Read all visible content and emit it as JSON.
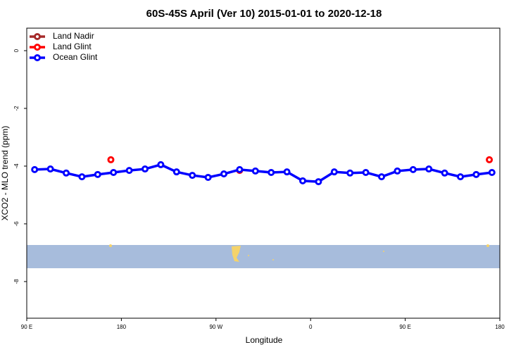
{
  "chart_data": {
    "type": "line",
    "title": "60S-45S April (Ver 10)   2015-01-01 to 2020-12-18",
    "x_label": "Longitude",
    "y_label": "XCO2 - MLO trend (ppm)",
    "xlim": [
      90,
      540
    ],
    "ylim": [
      -9.27,
      0.78
    ],
    "xticks": [
      {
        "value": 90,
        "label": "90 E"
      },
      {
        "value": 180,
        "label": "180"
      },
      {
        "value": 270,
        "label": "90 W"
      },
      {
        "value": 360,
        "label": "0"
      },
      {
        "value": 450,
        "label": "90 E"
      },
      {
        "value": 540,
        "label": "180"
      }
    ],
    "yticks": [
      0,
      -2,
      -4,
      -6,
      -8
    ],
    "legend": "top-left",
    "series": [
      {
        "name": "Land Nadir",
        "color": "#a52a2a",
        "mode": "lines+markers",
        "x": [],
        "values": []
      },
      {
        "name": "Land Glint",
        "color": "#ff0000",
        "mode": "markers",
        "x": [
          170,
          292.5,
          530
        ],
        "values": [
          -3.78,
          -4.15,
          -3.78
        ]
      },
      {
        "name": "Ocean Glint",
        "color": "#0000ff",
        "mode": "lines+markers",
        "x": [
          97.5,
          112.5,
          127.5,
          142.5,
          157.5,
          172.5,
          187.5,
          202.5,
          217.5,
          232.5,
          247.5,
          262.5,
          277.5,
          292.5,
          307.5,
          322.5,
          337.5,
          352.5,
          367.5,
          382.5,
          397.5,
          412.5,
          427.5,
          442.5,
          457.5,
          472.5,
          487.5,
          502.5,
          517.5,
          532.5
        ],
        "values": [
          -4.12,
          -4.1,
          -4.24,
          -4.37,
          -4.29,
          -4.22,
          -4.15,
          -4.1,
          -3.95,
          -4.2,
          -4.32,
          -4.39,
          -4.27,
          -4.12,
          -4.17,
          -4.22,
          -4.2,
          -4.51,
          -4.54,
          -4.2,
          -4.24,
          -4.22,
          -4.37,
          -4.17,
          -4.12,
          -4.1,
          -4.24,
          -4.37,
          -4.29,
          -4.22
        ]
      }
    ]
  }
}
